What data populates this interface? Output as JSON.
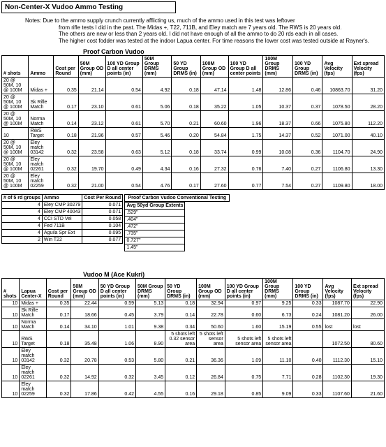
{
  "title": "Non-Center-X Vudoo Ammo Testing",
  "notes": [
    "Notes: Due to the ammo supply crunch currently afflicting us, much of the ammo used in this test was leftover",
    "from rifle tests I did in the past. The Midas +, T22, 711B, and Eley match are 7 years old. The RWS is 20 years old.",
    "The others are new or less than 2 years old. I did not have enough of all the ammo to do 20 rds each in all cases.",
    "The higher cost fodder was tested at the indoor Lapua center. For time reasons the lower cost was tested outside at Rayner's."
  ],
  "table1": {
    "section": "Proof Carbon Vudoo",
    "columns": [
      "# shots",
      "Ammo",
      "Cost per Round",
      "50M Group OD (mm)",
      "100 YD Group D all center points (in)",
      "50M Group DRMS (mm)",
      "50 YD Group DRMS (in)",
      "100M Group OD (mm)",
      "100 YD Group D all center points",
      "100M Group DRMS (mm)",
      "100 YD Group DRMS (in)",
      "Avg Velocity (fps)",
      "Ext spread Velocity (fps)"
    ],
    "rows": [
      [
        "20 @ 50M, 10 @ 100M",
        "Midas +",
        "0.35",
        "21.14",
        "0.54",
        "4.92",
        "0.18",
        "47.14",
        "1.48",
        "12.86",
        "0.46",
        "10863.70",
        "31.20"
      ],
      [
        "20 @ 50M, 10 @ 100M",
        "Sk Rifle Match",
        "0.17",
        "23.10",
        "0.61",
        "5.06",
        "0.18",
        "35.22",
        "1.05",
        "10.37",
        "0.37",
        "1078.50",
        "28.20"
      ],
      [
        "20 @ 50M, 10 @ 100M",
        "Norma Match",
        "0.14",
        "23.12",
        "0.61",
        "5.70",
        "0.21",
        "60.60",
        "1.96",
        "18.37",
        "0.66",
        "1075.80",
        "112.20"
      ],
      [
        "10",
        "RWS Target",
        "0.18",
        "21.96",
        "0.57",
        "5.46",
        "0.20",
        "54.84",
        "1.75",
        "14.37",
        "0.52",
        "1071.00",
        "40.10"
      ],
      [
        "20 @ 50M, 10 @ 100M",
        "Eley match 03142",
        "0.32",
        "23.58",
        "0.63",
        "5.12",
        "0.18",
        "33.74",
        "0.99",
        "10.08",
        "0.36",
        "1104.70",
        "24.90"
      ],
      [
        "20 @ 50M, 10 @ 100M",
        "Eley match 02261",
        "0.32",
        "19.70",
        "0.49",
        "4.34",
        "0.16",
        "27.32",
        "0.76",
        "7.40",
        "0.27",
        "1106.80",
        "13.30"
      ],
      [
        "20 @ 50M, 10 @ 100M",
        "Eley match 02259",
        "0.32",
        "21.00",
        "0.54",
        "4.76",
        "0.17",
        "27.60",
        "0.77",
        "7.54",
        "0.27",
        "1109.80",
        "18.00"
      ]
    ]
  },
  "table2": {
    "section": "Proof Carbon Vudoo Conventional Testing",
    "left_cols": [
      "# of 5 rd groups",
      "Ammo",
      "Cost Per Round"
    ],
    "right_col": "Avg 50yd Group Extents",
    "rows": [
      [
        "4",
        "Eley CMP 30279",
        "0.071",
        ".529\""
      ],
      [
        "4",
        "Eley CMP 40043",
        "0.071",
        ".404\""
      ],
      [
        "4",
        "CCI STD Vel",
        "0.058",
        ".472\""
      ],
      [
        "4",
        "Fed 711B",
        "0.104",
        ".735\""
      ],
      [
        "4",
        "Aguila Spr Ext",
        "0.095",
        "0.727\""
      ],
      [
        "2",
        "Win T22",
        "0.077",
        "1.45\""
      ]
    ]
  },
  "table3": {
    "section": "Vudoo M (Ace Kukri)",
    "columns": [
      "# shots",
      "Lapua Center-X",
      "Cost per Round",
      "50M Group OD (mm)",
      "50 YD Group D all center points (in)",
      "50M Group DRMS (mm)",
      "50 YD Group DRMS (in)",
      "100M Group OD (mm)",
      "100 YD Group D all center points (in)",
      "100M Group DRMS (mm)",
      "100 YD Group DRMS (in)",
      "Avg Velocity (fps)",
      "Ext spread Velocity (fps)"
    ],
    "rows": [
      [
        "10",
        "Midas +",
        "0.35",
        "22.44",
        "0.59",
        "5.13",
        "0.18",
        "32.94",
        "0.97",
        "9.25",
        "0.33",
        "1087.70",
        "22.90"
      ],
      [
        "10",
        "Sk Rifle Match",
        "0.17",
        "18.66",
        "0.45",
        "3.79",
        "0.14",
        "22.78",
        "0.60",
        "6.73",
        "0.24",
        "1081.20",
        "26.00"
      ],
      [
        "10",
        "Norma Match",
        "0.14",
        "34.10",
        "1.01",
        "9.38",
        "0.34",
        "50.60",
        "1.60",
        "15.19",
        "0.55",
        "lost",
        "lost"
      ],
      [
        "10",
        "RWS Target",
        "0.18",
        "35.48",
        "1.06",
        "8.90",
        "5 shots left 0.32 sensor area",
        "5 shots left sensor area",
        "5 shots left sensor area",
        "5 shots left sensor area",
        "",
        "1072.50",
        "80.60"
      ],
      [
        "10",
        "Eley match 03142",
        "0.32",
        "20.78",
        "0.53",
        "5.80",
        "0.21",
        "36.36",
        "1.09",
        "11.10",
        "0.40",
        "1112.30",
        "15.10"
      ],
      [
        "10",
        "Eley match 02261",
        "0.32",
        "14.92",
        "0.32",
        "3.45",
        "0.12",
        "26.84",
        "0.75",
        "7.71",
        "0.28",
        "1102.30",
        "19.30"
      ],
      [
        "10",
        "Eley match 02259",
        "0.32",
        "17.86",
        "0.42",
        "4.55",
        "0.16",
        "29.18",
        "0.85",
        "9.09",
        "0.33",
        "1107.60",
        "21.60"
      ]
    ]
  },
  "colors": {
    "border": "#000000",
    "bg": "#ffffff",
    "text": "#000000"
  }
}
